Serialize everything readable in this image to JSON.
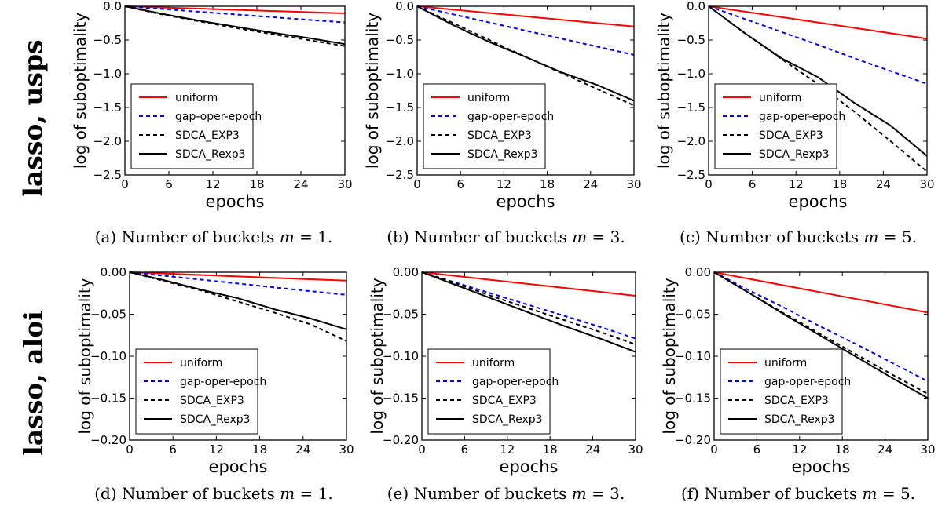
{
  "row_labels": [
    "lasso, usps",
    "lasso, aloi"
  ],
  "captions": [
    {
      "tag": "(a)",
      "text": "Number of buckets",
      "var": "m",
      "eq": "= 1."
    },
    {
      "tag": "(b)",
      "text": "Number of buckets",
      "var": "m",
      "eq": "= 3."
    },
    {
      "tag": "(c)",
      "text": "Number of buckets",
      "var": "m",
      "eq": "= 5."
    },
    {
      "tag": "(d)",
      "text": "Number of buckets",
      "var": "m",
      "eq": "= 1."
    },
    {
      "tag": "(e)",
      "text": "Number of buckets",
      "var": "m",
      "eq": "= 3."
    },
    {
      "tag": "(f)",
      "text": "Number of buckets",
      "var": "m",
      "eq": "= 5."
    }
  ],
  "colors": {
    "uniform": "#ff0000",
    "gap-oper-epoch": "#0000ff",
    "SDCA_EXP3": "#000000",
    "SDCA_Rexp3": "#000000"
  },
  "chart_data": [
    {
      "type": "line",
      "xlabel": "epochs",
      "ylabel": "log of suboptimality",
      "xlim": [
        0,
        30
      ],
      "ylim": [
        -2.5,
        0.0
      ],
      "xticks": [
        "0",
        "6",
        "12",
        "18",
        "24",
        "30"
      ],
      "yticks": [
        "0.0",
        "−0.5",
        "−1.0",
        "−1.5",
        "−2.0",
        "−2.5"
      ],
      "legend": "lower-left",
      "x": [
        0,
        5,
        10,
        15,
        20,
        25,
        30
      ],
      "series": [
        {
          "name": "uniform",
          "style": "solid",
          "color": "#ff0000",
          "values": [
            0,
            -0.017,
            -0.035,
            -0.052,
            -0.07,
            -0.087,
            -0.105
          ]
        },
        {
          "name": "gap-oper-epoch",
          "style": "dashed",
          "color": "#0000ff",
          "values": [
            0,
            -0.04,
            -0.08,
            -0.12,
            -0.16,
            -0.2,
            -0.24
          ]
        },
        {
          "name": "SDCA_EXP3",
          "style": "dashed",
          "color": "#000000",
          "values": [
            0,
            -0.12,
            -0.22,
            -0.32,
            -0.41,
            -0.5,
            -0.59
          ]
        },
        {
          "name": "SDCA_Rexp3",
          "style": "solid",
          "color": "#000000",
          "values": [
            0,
            -0.11,
            -0.21,
            -0.3,
            -0.39,
            -0.47,
            -0.56
          ]
        }
      ]
    },
    {
      "type": "line",
      "xlabel": "epochs",
      "ylabel": "log of suboptimality",
      "xlim": [
        0,
        30
      ],
      "ylim": [
        -2.5,
        0.0
      ],
      "xticks": [
        "0",
        "6",
        "12",
        "18",
        "24",
        "30"
      ],
      "yticks": [
        "0.0",
        "−0.5",
        "−1.0",
        "−1.5",
        "−2.0",
        "−2.5"
      ],
      "legend": "lower-left",
      "x": [
        0,
        5,
        10,
        15,
        20,
        25,
        30
      ],
      "series": [
        {
          "name": "uniform",
          "style": "solid",
          "color": "#ff0000",
          "values": [
            0,
            -0.05,
            -0.1,
            -0.15,
            -0.2,
            -0.25,
            -0.3
          ]
        },
        {
          "name": "gap-oper-epoch",
          "style": "dashed",
          "color": "#0000ff",
          "values": [
            0,
            -0.12,
            -0.24,
            -0.36,
            -0.48,
            -0.6,
            -0.72
          ]
        },
        {
          "name": "SDCA_EXP3",
          "style": "dashed",
          "color": "#000000",
          "values": [
            0,
            -0.25,
            -0.5,
            -0.75,
            -0.99,
            -1.23,
            -1.47
          ]
        },
        {
          "name": "SDCA_Rexp3",
          "style": "solid",
          "color": "#000000",
          "values": [
            0,
            -0.28,
            -0.53,
            -0.75,
            -0.98,
            -1.17,
            -1.4
          ]
        }
      ]
    },
    {
      "type": "line",
      "xlabel": "epochs",
      "ylabel": "log of suboptimality",
      "xlim": [
        0,
        30
      ],
      "ylim": [
        -2.5,
        0.0
      ],
      "xticks": [
        "0",
        "6",
        "12",
        "18",
        "24",
        "30"
      ],
      "yticks": [
        "0.0",
        "−0.5",
        "−1.0",
        "−1.5",
        "−2.0",
        "−2.5"
      ],
      "legend": "lower-left",
      "x": [
        0,
        5,
        10,
        15,
        20,
        25,
        30
      ],
      "series": [
        {
          "name": "uniform",
          "style": "solid",
          "color": "#ff0000",
          "values": [
            0,
            -0.08,
            -0.16,
            -0.24,
            -0.32,
            -0.4,
            -0.48
          ]
        },
        {
          "name": "gap-oper-epoch",
          "style": "dashed",
          "color": "#0000ff",
          "values": [
            0,
            -0.19,
            -0.38,
            -0.57,
            -0.77,
            -0.96,
            -1.15
          ]
        },
        {
          "name": "SDCA_EXP3",
          "style": "dashed",
          "color": "#000000",
          "values": [
            0,
            -0.4,
            -0.78,
            -1.15,
            -1.56,
            -2.0,
            -2.45
          ]
        },
        {
          "name": "SDCA_Rexp3",
          "style": "solid",
          "color": "#000000",
          "values": [
            0,
            -0.4,
            -0.77,
            -1.05,
            -1.43,
            -1.77,
            -2.22
          ]
        }
      ]
    },
    {
      "type": "line",
      "xlabel": "epochs",
      "ylabel": "log of suboptimality",
      "xlim": [
        0,
        30
      ],
      "ylim": [
        -0.2,
        0.0
      ],
      "xticks": [
        "0",
        "6",
        "12",
        "18",
        "24",
        "30"
      ],
      "yticks": [
        "0.00",
        "−0.05",
        "−0.10",
        "−0.15",
        "−0.20"
      ],
      "legend": "lower-left",
      "x": [
        0,
        5,
        10,
        15,
        20,
        25,
        30
      ],
      "series": [
        {
          "name": "uniform",
          "style": "solid",
          "color": "#ff0000",
          "values": [
            0,
            -0.0017,
            -0.0034,
            -0.005,
            -0.0067,
            -0.0084,
            -0.01
          ]
        },
        {
          "name": "gap-oper-epoch",
          "style": "dashed",
          "color": "#0000ff",
          "values": [
            0,
            -0.0045,
            -0.009,
            -0.0135,
            -0.018,
            -0.0225,
            -0.027
          ]
        },
        {
          "name": "SDCA_EXP3",
          "style": "dashed",
          "color": "#000000",
          "values": [
            0,
            -0.011,
            -0.022,
            -0.035,
            -0.048,
            -0.062,
            -0.082
          ]
        },
        {
          "name": "SDCA_Rexp3",
          "style": "solid",
          "color": "#000000",
          "values": [
            0,
            -0.01,
            -0.021,
            -0.031,
            -0.044,
            -0.055,
            -0.068
          ]
        }
      ]
    },
    {
      "type": "line",
      "xlabel": "epochs",
      "ylabel": "log of suboptimality",
      "xlim": [
        0,
        30
      ],
      "ylim": [
        -0.2,
        0.0
      ],
      "xticks": [
        "0",
        "6",
        "12",
        "18",
        "24",
        "30"
      ],
      "yticks": [
        "0.00",
        "−0.05",
        "−0.10",
        "−0.15",
        "−0.20"
      ],
      "legend": "lower-left",
      "x": [
        0,
        5,
        10,
        15,
        20,
        25,
        30
      ],
      "series": [
        {
          "name": "uniform",
          "style": "solid",
          "color": "#ff0000",
          "values": [
            0,
            -0.0047,
            -0.0094,
            -0.014,
            -0.0187,
            -0.0234,
            -0.028
          ]
        },
        {
          "name": "gap-oper-epoch",
          "style": "dashed",
          "color": "#0000ff",
          "values": [
            0,
            -0.013,
            -0.026,
            -0.039,
            -0.052,
            -0.065,
            -0.079
          ]
        },
        {
          "name": "SDCA_EXP3",
          "style": "dashed",
          "color": "#000000",
          "values": [
            0,
            -0.014,
            -0.029,
            -0.043,
            -0.057,
            -0.071,
            -0.086
          ]
        },
        {
          "name": "SDCA_Rexp3",
          "style": "solid",
          "color": "#000000",
          "values": [
            0,
            -0.016,
            -0.032,
            -0.048,
            -0.064,
            -0.079,
            -0.095
          ]
        }
      ]
    },
    {
      "type": "line",
      "xlabel": "epochs",
      "ylabel": "log of suboptimality",
      "xlim": [
        0,
        30
      ],
      "ylim": [
        -0.2,
        0.0
      ],
      "xticks": [
        "0",
        "6",
        "12",
        "18",
        "24",
        "30"
      ],
      "yticks": [
        "0.00",
        "−0.05",
        "−0.10",
        "−0.15",
        "−0.20"
      ],
      "legend": "lower-left",
      "x": [
        0,
        5,
        10,
        15,
        20,
        25,
        30
      ],
      "series": [
        {
          "name": "uniform",
          "style": "solid",
          "color": "#ff0000",
          "values": [
            0,
            -0.008,
            -0.016,
            -0.024,
            -0.032,
            -0.04,
            -0.048
          ]
        },
        {
          "name": "gap-oper-epoch",
          "style": "dashed",
          "color": "#0000ff",
          "values": [
            0,
            -0.022,
            -0.043,
            -0.065,
            -0.086,
            -0.108,
            -0.13
          ]
        },
        {
          "name": "SDCA_EXP3",
          "style": "dashed",
          "color": "#000000",
          "values": [
            0,
            -0.025,
            -0.05,
            -0.074,
            -0.098,
            -0.122,
            -0.145
          ]
        },
        {
          "name": "SDCA_Rexp3",
          "style": "solid",
          "color": "#000000",
          "values": [
            0,
            -0.025,
            -0.051,
            -0.076,
            -0.101,
            -0.126,
            -0.15
          ]
        }
      ]
    }
  ]
}
